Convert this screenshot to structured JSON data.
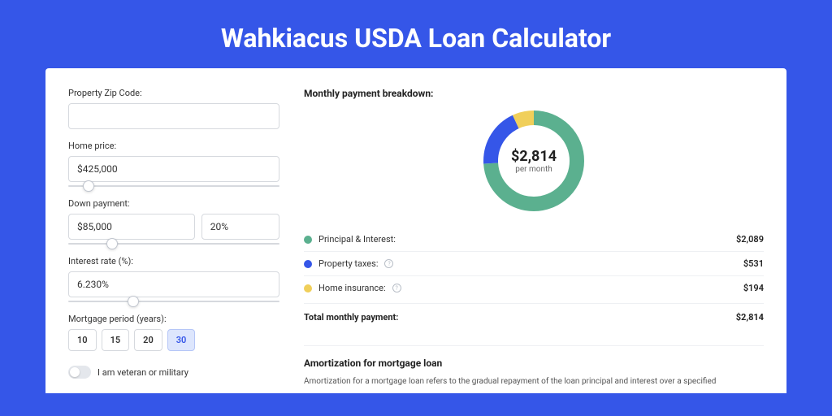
{
  "header": {
    "title": "Wahkiacus USDA Loan Calculator"
  },
  "form": {
    "zip": {
      "label": "Property Zip Code:",
      "value": ""
    },
    "home_price": {
      "label": "Home price:",
      "value": "$425,000",
      "slider_pct": 7
    },
    "down_payment": {
      "label": "Down payment:",
      "value": "$85,000",
      "pct_value": "20%",
      "slider_pct": 18
    },
    "interest": {
      "label": "Interest rate (%):",
      "value": "6.230%",
      "slider_pct": 28
    },
    "period": {
      "label": "Mortgage period (years):",
      "options": [
        "10",
        "15",
        "20",
        "30"
      ],
      "selected": "30"
    },
    "veteran": {
      "label": "I am veteran or military",
      "checked": false
    }
  },
  "breakdown": {
    "title": "Monthly payment breakdown:",
    "center_amount": "$2,814",
    "center_label": "per month",
    "donut": {
      "size": 124,
      "thickness": 18,
      "segments": [
        {
          "color": "#5bb08f",
          "pct": 74
        },
        {
          "color": "#3556e8",
          "pct": 19
        },
        {
          "color": "#f0cf5a",
          "pct": 7
        }
      ]
    },
    "rows": [
      {
        "color": "#5bb08f",
        "label": "Principal & Interest:",
        "info": false,
        "value": "$2,089"
      },
      {
        "color": "#3556e8",
        "label": "Property taxes:",
        "info": true,
        "value": "$531"
      },
      {
        "color": "#f0cf5a",
        "label": "Home insurance:",
        "info": true,
        "value": "$194"
      }
    ],
    "total": {
      "label": "Total monthly payment:",
      "value": "$2,814"
    }
  },
  "amortization": {
    "title": "Amortization for mortgage loan",
    "text": "Amortization for a mortgage loan refers to the gradual repayment of the loan principal and interest over a specified"
  }
}
